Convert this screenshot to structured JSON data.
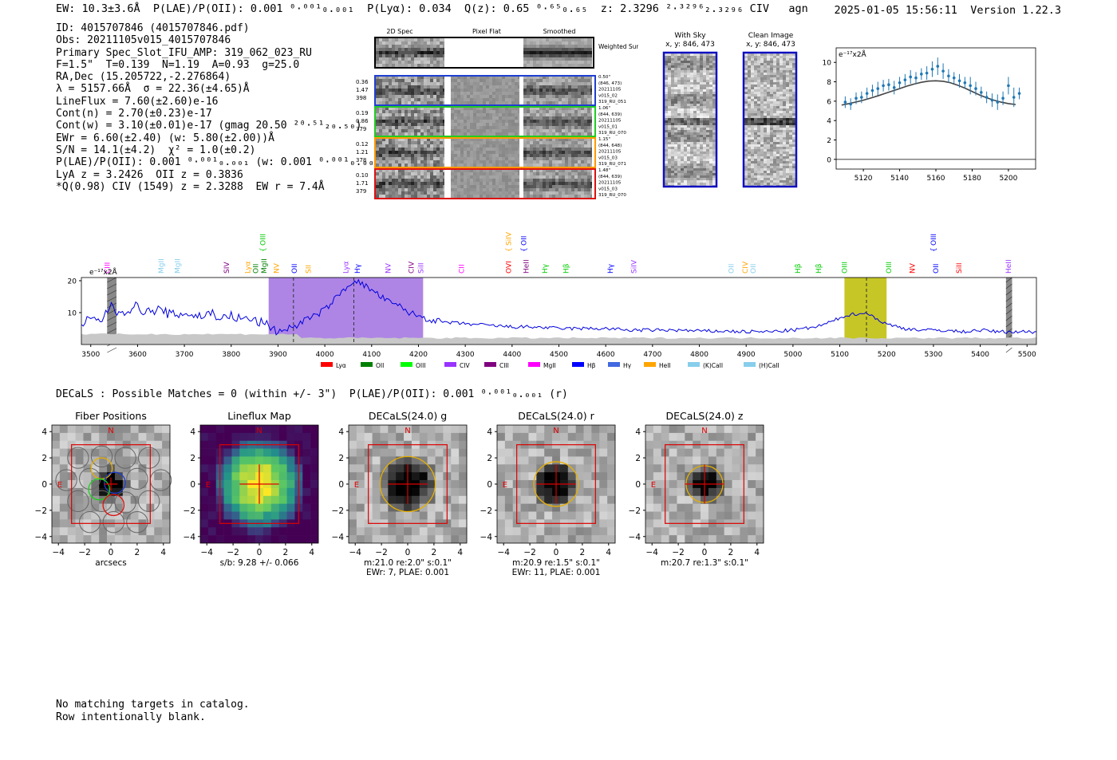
{
  "header": {
    "left_text": "EW: 10.3±3.6Å  P(LAE)/P(OII): 0.001 ⁰·⁰⁰¹₀.₀₀₁  P(Lyα): 0.034  Q(z): 0.65 ⁰·⁶⁵₀.₆₅  z: 2.3296 ²·³²⁹⁶₂.₃₂₉₆ CIV   agn",
    "timestamp": "2025-01-05 15:56:11",
    "version": "Version 1.22.3"
  },
  "info": {
    "lines": [
      "ID: 4015707846 (4015707846.pdf)",
      "Obs: 20211105v015_4015707846",
      "Primary Spec_Slot_IFU_AMP: 319_062_023_RU",
      "F=1.5\"  T=0.139  N=1.19  A=0.93  g=25.0",
      "RA,Dec (15.205722,-2.276864)",
      "λ = 5157.66Å  σ = 22.36(±4.65)Å",
      "LineFlux = 7.60(±2.60)e-16",
      "Cont(n) = 2.70(±0.23)e-17",
      "Cont(w) = 3.10(±0.01)e-17 (gmag 20.50 ²⁰·⁵¹₂₀.₅₀)",
      "EWr = 6.60(±2.40) (w: 5.80(±2.00))Å",
      "S/N = 14.1(±4.2)  χ² = 1.0(±0.2)",
      "P(LAE)/P(OII): 0.001 ⁰·⁰⁰¹₀.₀₀₁ (w: 0.001 ⁰·⁰⁰¹₀.₀₀₁)",
      "LyA z = 3.2426  OII z = 0.3836",
      "*Q(0.98) CIV (1549) z = 2.3288  EW r = 7.4Å"
    ]
  },
  "cutouts": {
    "headers": [
      "2D Spec",
      "Pixel Flat",
      "Smoothed"
    ],
    "weighted_sum_label": "Weighted Sum",
    "rows": [
      {
        "left": [
          "0.36",
          "1.47",
          "398"
        ],
        "right": [
          "0.50\"",
          "(846, 473)",
          "20211105",
          "v015_02",
          "319_RU_051"
        ],
        "color": "#1f3fd0"
      },
      {
        "left": [
          "0.19",
          "0.86",
          "379"
        ],
        "right": [
          "1.06\"",
          "(844, 639)",
          "20211105",
          "v015_01",
          "319_RU_070"
        ],
        "color": "#22cc22"
      },
      {
        "left": [
          "0.12",
          "1.21",
          "378"
        ],
        "right": [
          "1.15\"",
          "(844, 648)",
          "20211105",
          "v015_03",
          "319_RU_071"
        ],
        "color": "#ff9900"
      },
      {
        "left": [
          "0.10",
          "1.71",
          "379"
        ],
        "right": [
          "1.48\"",
          "(844, 639)",
          "20211105",
          "v015_03",
          "319_RU_070"
        ],
        "color": "#dd1111"
      }
    ]
  },
  "sky_panels": {
    "with_sky_title": "With Sky",
    "with_sky_xy": "x, y: 846, 473",
    "clean_title": "Clean Image",
    "clean_xy": "x, y: 846, 473"
  },
  "colors": {
    "data_blue": "#1f77b4",
    "fit_gray": "#444444",
    "spectrum_blue": "#0000dd",
    "purple_band": "#a070e0",
    "olive_band": "#bcbc00",
    "red_frame": "#dd0000",
    "yellow_circle": "#e8b000"
  },
  "chart_data": [
    {
      "type": "scatter",
      "title": "",
      "ylabel": "e⁻¹⁷x2Å",
      "xlabel": "",
      "xlim": [
        5105,
        5215
      ],
      "ylim": [
        -1,
        11.5
      ],
      "xticks": [
        5120,
        5140,
        5160,
        5180,
        5200
      ],
      "yticks": [
        0,
        2,
        4,
        6,
        8,
        10
      ],
      "series": [
        {
          "name": "data",
          "x": [
            5110,
            5113,
            5116,
            5119,
            5122,
            5125,
            5128,
            5131,
            5134,
            5137,
            5140,
            5143,
            5146,
            5149,
            5152,
            5155,
            5158,
            5161,
            5164,
            5167,
            5170,
            5173,
            5176,
            5179,
            5182,
            5185,
            5188,
            5191,
            5194,
            5197,
            5200,
            5203,
            5206
          ],
          "y": [
            5.9,
            5.7,
            6.3,
            6.4,
            6.8,
            7.1,
            7.3,
            7.6,
            7.7,
            7.4,
            7.9,
            8.2,
            8.5,
            8.4,
            8.8,
            8.9,
            9.3,
            9.6,
            9.1,
            8.6,
            8.4,
            8.1,
            7.9,
            7.6,
            7.3,
            6.9,
            6.4,
            6.1,
            5.9,
            6.3,
            7.6,
            6.4,
            6.8
          ],
          "err": [
            0.6,
            0.6,
            0.6,
            0.6,
            0.6,
            0.6,
            0.7,
            0.6,
            0.6,
            0.7,
            0.6,
            0.6,
            0.7,
            0.6,
            0.6,
            0.7,
            0.8,
            0.9,
            0.8,
            0.7,
            0.6,
            0.7,
            0.6,
            0.9,
            0.7,
            0.6,
            0.6,
            0.7,
            0.8,
            0.7,
            0.9,
            1.0,
            0.6
          ]
        },
        {
          "name": "fit",
          "x": [
            5108,
            5112,
            5116,
            5120,
            5124,
            5128,
            5132,
            5136,
            5140,
            5144,
            5148,
            5152,
            5156,
            5160,
            5164,
            5168,
            5172,
            5176,
            5180,
            5184,
            5188,
            5192,
            5196,
            5200,
            5204
          ],
          "y": [
            5.6,
            5.75,
            5.92,
            6.1,
            6.32,
            6.55,
            6.8,
            7.05,
            7.3,
            7.55,
            7.77,
            7.95,
            8.07,
            8.1,
            8.05,
            7.9,
            7.65,
            7.35,
            7.0,
            6.65,
            6.35,
            6.1,
            5.9,
            5.75,
            5.65
          ]
        }
      ]
    },
    {
      "type": "line",
      "title": "",
      "ylabel": "e⁻¹⁷x2Å",
      "xlabel": "",
      "xlim": [
        3480,
        5520
      ],
      "ylim": [
        0,
        21
      ],
      "xticks": [
        3500,
        3600,
        3700,
        3800,
        3900,
        4000,
        4100,
        4200,
        4300,
        4400,
        4500,
        4600,
        4700,
        4800,
        4900,
        5000,
        5100,
        5200,
        5300,
        5400,
        5500
      ],
      "yticks": [
        10,
        20
      ],
      "shaded_regions": [
        {
          "x0": 3880,
          "x1": 4210,
          "color": "#a070e0"
        },
        {
          "x0": 5110,
          "x1": 5200,
          "color": "#bcbc00"
        }
      ],
      "hatched_regions": [
        {
          "x0": 3535,
          "x1": 3555
        },
        {
          "x0": 5455,
          "x1": 5468
        }
      ],
      "dashed_lines": [
        3933,
        4062,
        5157
      ],
      "spectrum_anchors": {
        "x": [
          3480,
          3500,
          3520,
          3540,
          3560,
          3580,
          3600,
          3620,
          3640,
          3660,
          3680,
          3700,
          3720,
          3740,
          3760,
          3780,
          3800,
          3820,
          3840,
          3860,
          3880,
          3900,
          3920,
          3940,
          3960,
          3980,
          4000,
          4020,
          4040,
          4060,
          4080,
          4100,
          4120,
          4140,
          4160,
          4180,
          4200,
          4220,
          4250,
          4300,
          4350,
          4400,
          4450,
          4500,
          4550,
          4600,
          4650,
          4700,
          4750,
          4800,
          4850,
          4900,
          4950,
          5000,
          5050,
          5080,
          5110,
          5130,
          5150,
          5170,
          5190,
          5210,
          5240,
          5280,
          5320,
          5360,
          5400,
          5440,
          5480,
          5520
        ],
        "y": [
          6,
          8,
          7,
          12,
          10,
          11,
          12,
          10,
          11,
          10,
          9,
          10,
          9,
          9,
          10,
          8,
          9,
          8,
          8,
          7,
          6,
          4,
          5,
          6,
          8,
          9,
          11,
          14,
          17,
          20,
          19,
          17,
          15,
          13,
          12,
          10,
          9,
          8,
          7,
          6.5,
          6,
          5.5,
          5.5,
          5,
          5,
          5,
          4.5,
          4.5,
          4.5,
          4.2,
          4.2,
          4,
          4,
          4.5,
          5.5,
          7,
          9,
          9.5,
          10,
          9,
          7,
          6,
          5,
          4.5,
          4.5,
          4,
          4.5,
          4,
          4,
          4
        ]
      },
      "legend": [
        "Lyα",
        "OII",
        "OIII",
        "CIV",
        "CIII",
        "MgII",
        "Hβ",
        "Hγ",
        "HeII",
        "(K)CaII",
        "(H)CaII"
      ],
      "legend_colors": [
        "#ff0000",
        "#008000",
        "#00ff00",
        "#9933ff",
        "#800080",
        "#ff00ff",
        "#0000ff",
        "#4169e1",
        "#ffa500",
        "#87ceeb",
        "#87ceeb"
      ],
      "line_labels": [
        {
          "text": "CIII",
          "x": 3535,
          "color": "#ff00ff",
          "tier": 0
        },
        {
          "text": "MgII",
          "x": 3650,
          "color": "#87ceeb",
          "tier": 0
        },
        {
          "text": "MgII",
          "x": 3685,
          "color": "#87ceeb",
          "tier": 0
        },
        {
          "text": "SIV",
          "x": 3790,
          "color": "#800080",
          "tier": 0
        },
        {
          "text": "Lyα",
          "x": 3835,
          "color": "#ffa500",
          "tier": 0
        },
        {
          "text": "OII",
          "x": 3852,
          "color": "#008000",
          "tier": 0
        },
        {
          "text": "MgII",
          "x": 3870,
          "color": "#008000",
          "tier": 0
        },
        {
          "text": "OIII",
          "x": 3868,
          "color": "#00cc00",
          "tier": 2
        },
        {
          "text": "NV",
          "x": 3897,
          "color": "#ffa500",
          "tier": 0
        },
        {
          "text": "OII",
          "x": 3935,
          "color": "#0000ff",
          "tier": 0
        },
        {
          "text": "SII",
          "x": 3965,
          "color": "#ffa500",
          "tier": 0
        },
        {
          "text": "Lyα",
          "x": 4045,
          "color": "#9933ff",
          "tier": 0
        },
        {
          "text": "Hγ",
          "x": 4070,
          "color": "#0000ff",
          "tier": 0
        },
        {
          "text": "NV",
          "x": 4135,
          "color": "#9933ff",
          "tier": 0
        },
        {
          "text": "CIV",
          "x": 4185,
          "color": "#800080",
          "tier": 0
        },
        {
          "text": "SiII",
          "x": 4205,
          "color": "#9933ff",
          "tier": 0
        },
        {
          "text": "CII",
          "x": 4292,
          "color": "#ff00ff",
          "tier": 0
        },
        {
          "text": "SiIV",
          "x": 4393,
          "color": "#ffa500",
          "tier": 2
        },
        {
          "text": "OII",
          "x": 4425,
          "color": "#0000ff",
          "tier": 2
        },
        {
          "text": "OVI",
          "x": 4393,
          "color": "#ff0000",
          "tier": 0
        },
        {
          "text": "HeII",
          "x": 4430,
          "color": "#800080",
          "tier": 0
        },
        {
          "text": "Hγ",
          "x": 4470,
          "color": "#00cc00",
          "tier": 0
        },
        {
          "text": "Hβ",
          "x": 4515,
          "color": "#00cc00",
          "tier": 0
        },
        {
          "text": "Hγ",
          "x": 4610,
          "color": "#0000ff",
          "tier": 0
        },
        {
          "text": "SiIV",
          "x": 4660,
          "color": "#9933ff",
          "tier": 0
        },
        {
          "text": "OII",
          "x": 4868,
          "color": "#87ceeb",
          "tier": 0
        },
        {
          "text": "CIV",
          "x": 4898,
          "color": "#ffa500",
          "tier": 0
        },
        {
          "text": "OII",
          "x": 4915,
          "color": "#87ceeb",
          "tier": 0
        },
        {
          "text": "Hβ",
          "x": 5010,
          "color": "#00cc00",
          "tier": 0
        },
        {
          "text": "Hβ",
          "x": 5055,
          "color": "#00cc00",
          "tier": 0
        },
        {
          "text": "OIII",
          "x": 5110,
          "color": "#00cc00",
          "tier": 0
        },
        {
          "text": "OIII",
          "x": 5205,
          "color": "#00cc00",
          "tier": 0
        },
        {
          "text": "NV",
          "x": 5255,
          "color": "#ff0000",
          "tier": 0
        },
        {
          "text": "OII",
          "x": 5305,
          "color": "#0000ff",
          "tier": 0
        },
        {
          "text": "OIII",
          "x": 5300,
          "color": "#0000ff",
          "tier": 2
        },
        {
          "text": "SiII",
          "x": 5355,
          "color": "#ff0000",
          "tier": 0
        },
        {
          "text": "HeII",
          "x": 5460,
          "color": "#9933ff",
          "tier": 0
        }
      ],
      "overlay_label": "e⁻¹⁷x2Å"
    },
    {
      "type": "heatmap",
      "panels": [
        {
          "title": "Fiber Positions",
          "xlabel": "arcsecs",
          "caption": [],
          "kind": "fibers"
        },
        {
          "title": "Lineflux Map",
          "xlabel": "",
          "caption": [
            "s/b: 9.28 +/- 0.066"
          ],
          "kind": "lineflux"
        },
        {
          "title": "DECaLS(24.0) g",
          "xlabel": "",
          "caption": [
            "m:21.0  re:2.0\"  s:0.1\"",
            "EWr: 7, PLAE: 0.001"
          ],
          "kind": "decals",
          "r": 2.1
        },
        {
          "title": "DECaLS(24.0) r",
          "xlabel": "",
          "caption": [
            "m:20.9  re:1.5\"  s:0.1\"",
            "EWr: 11, PLAE: 0.001"
          ],
          "kind": "decals",
          "r": 1.7
        },
        {
          "title": "DECaLS(24.0) z",
          "xlabel": "",
          "caption": [
            "m:20.7  re:1.3\"  s:0.1\""
          ],
          "kind": "decals",
          "r": 1.4
        }
      ],
      "xlim": [
        -4.5,
        4.5
      ],
      "ylim": [
        -4.5,
        4.5
      ],
      "ticks": [
        -4,
        -2,
        0,
        2,
        4
      ],
      "north_label": "N",
      "east_label": "E"
    }
  ],
  "decals_line": "DECaLS : Possible Matches = 0 (within +/- 3\")  P(LAE)/P(OII): 0.001 ⁰·⁰⁰¹₀.₀₀₁ (r)",
  "footer": {
    "line1": "No matching targets in catalog.",
    "line2": "Row intentionally blank."
  }
}
